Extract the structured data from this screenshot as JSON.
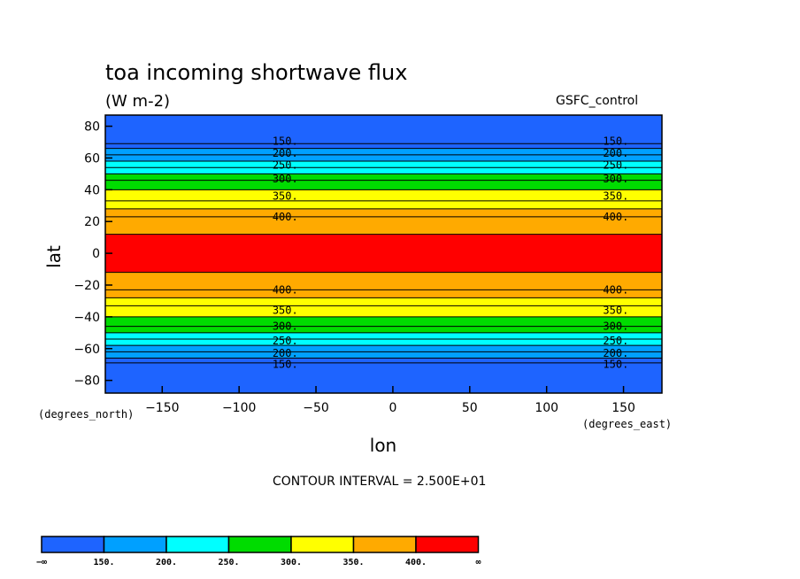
{
  "chart_data": {
    "type": "contour",
    "title": "toa incoming shortwave flux",
    "units": "(W m-2)",
    "model": "GSFC_control",
    "xlabel": "lon",
    "ylabel": "lat",
    "xunit": "(degrees_east)",
    "yunit": "(degrees_north)",
    "xlim": [
      -187,
      175
    ],
    "ylim": [
      -88,
      87
    ],
    "xticks": [
      -150,
      -100,
      -50,
      0,
      50,
      100,
      150
    ],
    "xtick_labels": [
      "−150",
      "−100",
      "−50",
      "0",
      "50",
      "100",
      "150"
    ],
    "yticks": [
      80,
      60,
      40,
      20,
      0,
      -20,
      -40,
      -60,
      -80
    ],
    "ytick_labels": [
      "80",
      "60",
      "40",
      "20",
      "0",
      "−20",
      "−40",
      "−60",
      "−80"
    ],
    "contour_interval_text": "CONTOUR INTERVAL = 2.500E+01",
    "levels": [
      150,
      175,
      200,
      225,
      250,
      275,
      300,
      325,
      350,
      375,
      400,
      425
    ],
    "level_colors": [
      "#1e64ff",
      "#00a0ff",
      "#00ffff",
      "#00dc00",
      "#ffff00",
      "#ffaa00",
      "#ff0000"
    ],
    "north_contour_lats": [
      69,
      66,
      62,
      58,
      54,
      50,
      46,
      40,
      33,
      28,
      23,
      12
    ],
    "south_contour_lats": [
      -69,
      -66,
      -62,
      -58,
      -54,
      -50,
      -46,
      -40,
      -33,
      -28,
      -23,
      -12
    ],
    "contour_labels": [
      {
        "text": "150.",
        "lat": 70.5
      },
      {
        "text": "200.",
        "lat": 63
      },
      {
        "text": "250.",
        "lat": 55.5
      },
      {
        "text": "300.",
        "lat": 47
      },
      {
        "text": "350.",
        "lat": 36
      },
      {
        "text": "400.",
        "lat": 23
      },
      {
        "text": "400.",
        "lat": -23
      },
      {
        "text": "350.",
        "lat": -36
      },
      {
        "text": "300.",
        "lat": -46
      },
      {
        "text": "250.",
        "lat": -55
      },
      {
        "text": "200.",
        "lat": -63
      },
      {
        "text": "150.",
        "lat": -70
      }
    ],
    "contour_label_lons": [
      -70,
      145
    ],
    "colorbar_labels": [
      "−∞",
      "150.",
      "200.",
      "250.",
      "300.",
      "350.",
      "400.",
      "∞"
    ]
  }
}
